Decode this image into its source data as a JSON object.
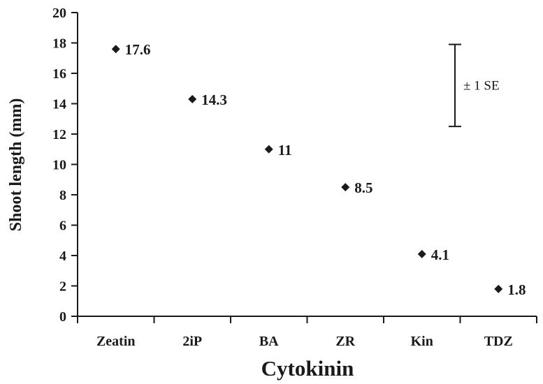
{
  "chart_data": {
    "type": "scatter",
    "title": "",
    "xlabel": "Cytokinin",
    "ylabel": "Shoot length (mm)",
    "categories": [
      "Zeatin",
      "2iP",
      "BA",
      "ZR",
      "Kin",
      "TDZ"
    ],
    "values": [
      17.6,
      14.3,
      11,
      8.5,
      4.1,
      1.8
    ],
    "data_labels": [
      "17.6",
      "14.3",
      "11",
      "8.5",
      "4.1",
      "1.8"
    ],
    "ylim": [
      0,
      20
    ],
    "yticks": [
      "0",
      "2",
      "4",
      "6",
      "8",
      "10",
      "12",
      "14",
      "16",
      "18",
      "20"
    ],
    "grid": false,
    "marker": "diamond",
    "error_bar": {
      "label": "± 1 SE",
      "low": 12.5,
      "high": 17.9
    }
  }
}
